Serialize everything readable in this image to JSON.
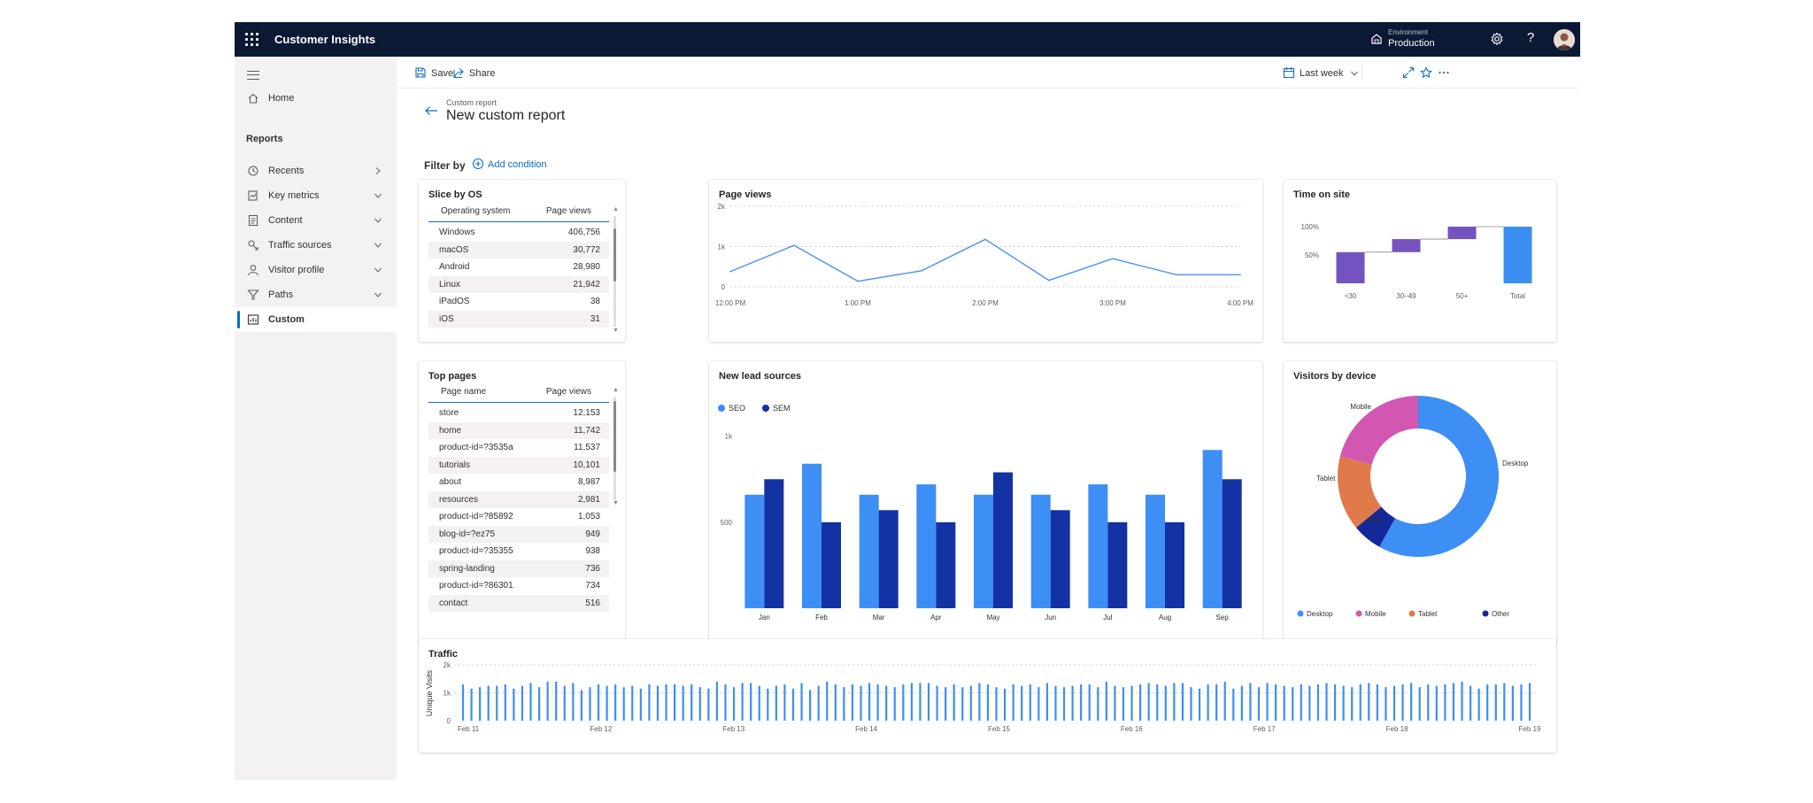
{
  "topbar": {
    "app_title": "Customer Insights",
    "environment_label": "Environment",
    "environment_value": "Production",
    "help_glyph": "?"
  },
  "sidebar": {
    "items": [
      {
        "label": "Home",
        "icon": "home-icon",
        "has_chevron": false
      },
      {
        "label": "Recents",
        "icon": "history-icon",
        "has_chevron": true,
        "chevron": "right"
      },
      {
        "label": "Key metrics",
        "icon": "metrics-icon",
        "has_chevron": true,
        "chevron": "down"
      },
      {
        "label": "Content",
        "icon": "document-icon",
        "has_chevron": true,
        "chevron": "down"
      },
      {
        "label": "Traffic sources",
        "icon": "traffic-icon",
        "has_chevron": true,
        "chevron": "down"
      },
      {
        "label": "Visitor profile",
        "icon": "person-icon",
        "has_chevron": true,
        "chevron": "down"
      },
      {
        "label": "Paths",
        "icon": "funnel-icon",
        "has_chevron": true,
        "chevron": "down"
      },
      {
        "label": "Custom",
        "icon": "custom-report-icon",
        "has_chevron": false,
        "active": true
      }
    ],
    "reports_heading": "Reports"
  },
  "commandbar": {
    "save_label": "Save",
    "share_label": "Share",
    "date_range": "Last week"
  },
  "header": {
    "breadcrumb": "Custom report",
    "title": "New custom report",
    "filter_label": "Filter by",
    "add_condition": "Add condition"
  },
  "os_table": {
    "title": "Slice by OS",
    "col1": "Operating system",
    "col2": "Page views",
    "rows": [
      {
        "name": "Windows",
        "value": "406,756"
      },
      {
        "name": "macOS",
        "value": "30,772"
      },
      {
        "name": "Android",
        "value": "28,980"
      },
      {
        "name": "Linux",
        "value": "21,942"
      },
      {
        "name": "iPadOS",
        "value": "38"
      },
      {
        "name": "iOS",
        "value": "31"
      }
    ]
  },
  "pages_table": {
    "title": "Top pages",
    "col1": "Page name",
    "col2": "Page views",
    "rows": [
      {
        "name": "store",
        "value": "12,153"
      },
      {
        "name": "home",
        "value": "11,742"
      },
      {
        "name": "product-id=?3535a",
        "value": "11,537"
      },
      {
        "name": "tutorials",
        "value": "10,101"
      },
      {
        "name": "about",
        "value": "8,987"
      },
      {
        "name": "resources",
        "value": "2,981"
      },
      {
        "name": "product-id=?85892",
        "value": "1,053"
      },
      {
        "name": "blog-id=?ez75",
        "value": "949"
      },
      {
        "name": "product-id=?35355",
        "value": "938"
      },
      {
        "name": "spring-landing",
        "value": "736"
      },
      {
        "name": "product-id=?86301",
        "value": "734"
      },
      {
        "name": "contact",
        "value": "516"
      }
    ]
  },
  "chart_data": [
    {
      "id": "page-views",
      "type": "line",
      "title": "Page views",
      "x": [
        "12:00 PM",
        "",
        "1:00 PM",
        "",
        "2:00 PM",
        "",
        "3:00 PM",
        "",
        "4:00 PM"
      ],
      "xticks": [
        "12:00 PM",
        "1:00 PM",
        "2:00 PM",
        "3:00 PM",
        "4:00 PM"
      ],
      "values": [
        380,
        1030,
        140,
        400,
        1180,
        160,
        700,
        300,
        300
      ],
      "yticks": [
        "2k",
        "1k",
        "0"
      ],
      "ylim": [
        0,
        2000
      ],
      "grid": true,
      "color": "#4a90f4"
    },
    {
      "id": "time-on-site",
      "type": "bar",
      "subtype": "waterfall",
      "title": "Time on site",
      "categories": [
        "<30",
        "30–49",
        "50+",
        "Total"
      ],
      "steps": [
        [
          0,
          55
        ],
        [
          55,
          78
        ],
        [
          78,
          100
        ],
        [
          0,
          100
        ]
      ],
      "yticks": [
        "100%",
        "50%"
      ],
      "ylim": [
        0,
        100
      ],
      "colors": [
        "#7452c0",
        "#7452c0",
        "#7452c0",
        "#3b8ff2"
      ]
    },
    {
      "id": "new-lead-sources",
      "type": "bar",
      "title": "New lead sources",
      "categories": [
        "Jan",
        "Feb",
        "Mar",
        "Apr",
        "May",
        "Jun",
        "Jul",
        "Aug",
        "Sep"
      ],
      "series": [
        {
          "name": "SEO",
          "color": "#3d8ef5",
          "values": [
            660,
            840,
            660,
            720,
            660,
            660,
            720,
            660,
            920
          ]
        },
        {
          "name": "SEM",
          "color": "#1332a3",
          "values": [
            750,
            500,
            570,
            500,
            790,
            570,
            500,
            500,
            750
          ]
        }
      ],
      "yticks": [
        "1k",
        "500"
      ],
      "ylim": [
        0,
        1050
      ],
      "legend": "top-left"
    },
    {
      "id": "visitors-by-device",
      "type": "pie",
      "subtype": "donut",
      "title": "Visitors by device",
      "slices": [
        {
          "label": "Desktop",
          "value": 58,
          "color": "#3d8ef5"
        },
        {
          "label": "Other",
          "value": 6,
          "color": "#14289a"
        },
        {
          "label": "Tablet",
          "value": 15,
          "color": "#e07a4b"
        },
        {
          "label": "Mobile",
          "value": 21,
          "color": "#d157b1"
        }
      ],
      "legend": "bottom"
    },
    {
      "id": "traffic",
      "type": "bar",
      "title": "Traffic",
      "ylabel": "Unique Visits",
      "yticks": [
        "2k",
        "1k",
        "0"
      ],
      "ylim": [
        0,
        2000
      ],
      "xticks": [
        "Feb 11",
        "Feb 12",
        "Feb 13",
        "Feb 14",
        "Feb 15",
        "Feb 16",
        "Feb 17",
        "Feb 18",
        "Feb 19"
      ],
      "values": [
        1300,
        1150,
        1200,
        1250,
        1250,
        1300,
        1150,
        1250,
        1350,
        1200,
        1400,
        1400,
        1250,
        1350,
        1100,
        1200,
        1300,
        1250,
        1300,
        1200,
        1250,
        1150,
        1300,
        1250,
        1300,
        1300,
        1250,
        1300,
        1200,
        1150,
        1400,
        1300,
        1200,
        1350,
        1350,
        1250,
        1150,
        1250,
        1300,
        1150,
        1350,
        1100,
        1250,
        1400,
        1300,
        1200,
        1300,
        1250,
        1350,
        1300,
        1250,
        1200,
        1300,
        1350,
        1350,
        1350,
        1250,
        1200,
        1300,
        1200,
        1250,
        1350,
        1300,
        1200,
        1150,
        1300,
        1250,
        1300,
        1200,
        1350,
        1250,
        1200,
        1250,
        1300,
        1300,
        1200,
        1400,
        1250,
        1200,
        1250,
        1300,
        1350,
        1300,
        1250,
        1350,
        1350,
        1200,
        1150,
        1300,
        1300,
        1400,
        1150,
        1250,
        1350,
        1200,
        1350,
        1300,
        1250,
        1200,
        1300,
        1250,
        1300,
        1350,
        1300,
        1250,
        1200,
        1300,
        1350,
        1300,
        1200,
        1250,
        1300,
        1350,
        1200,
        1300,
        1250,
        1300,
        1350,
        1400,
        1250,
        1150,
        1300,
        1300,
        1350,
        1250,
        1300,
        1350
      ],
      "color": "#3d8ef5"
    }
  ]
}
